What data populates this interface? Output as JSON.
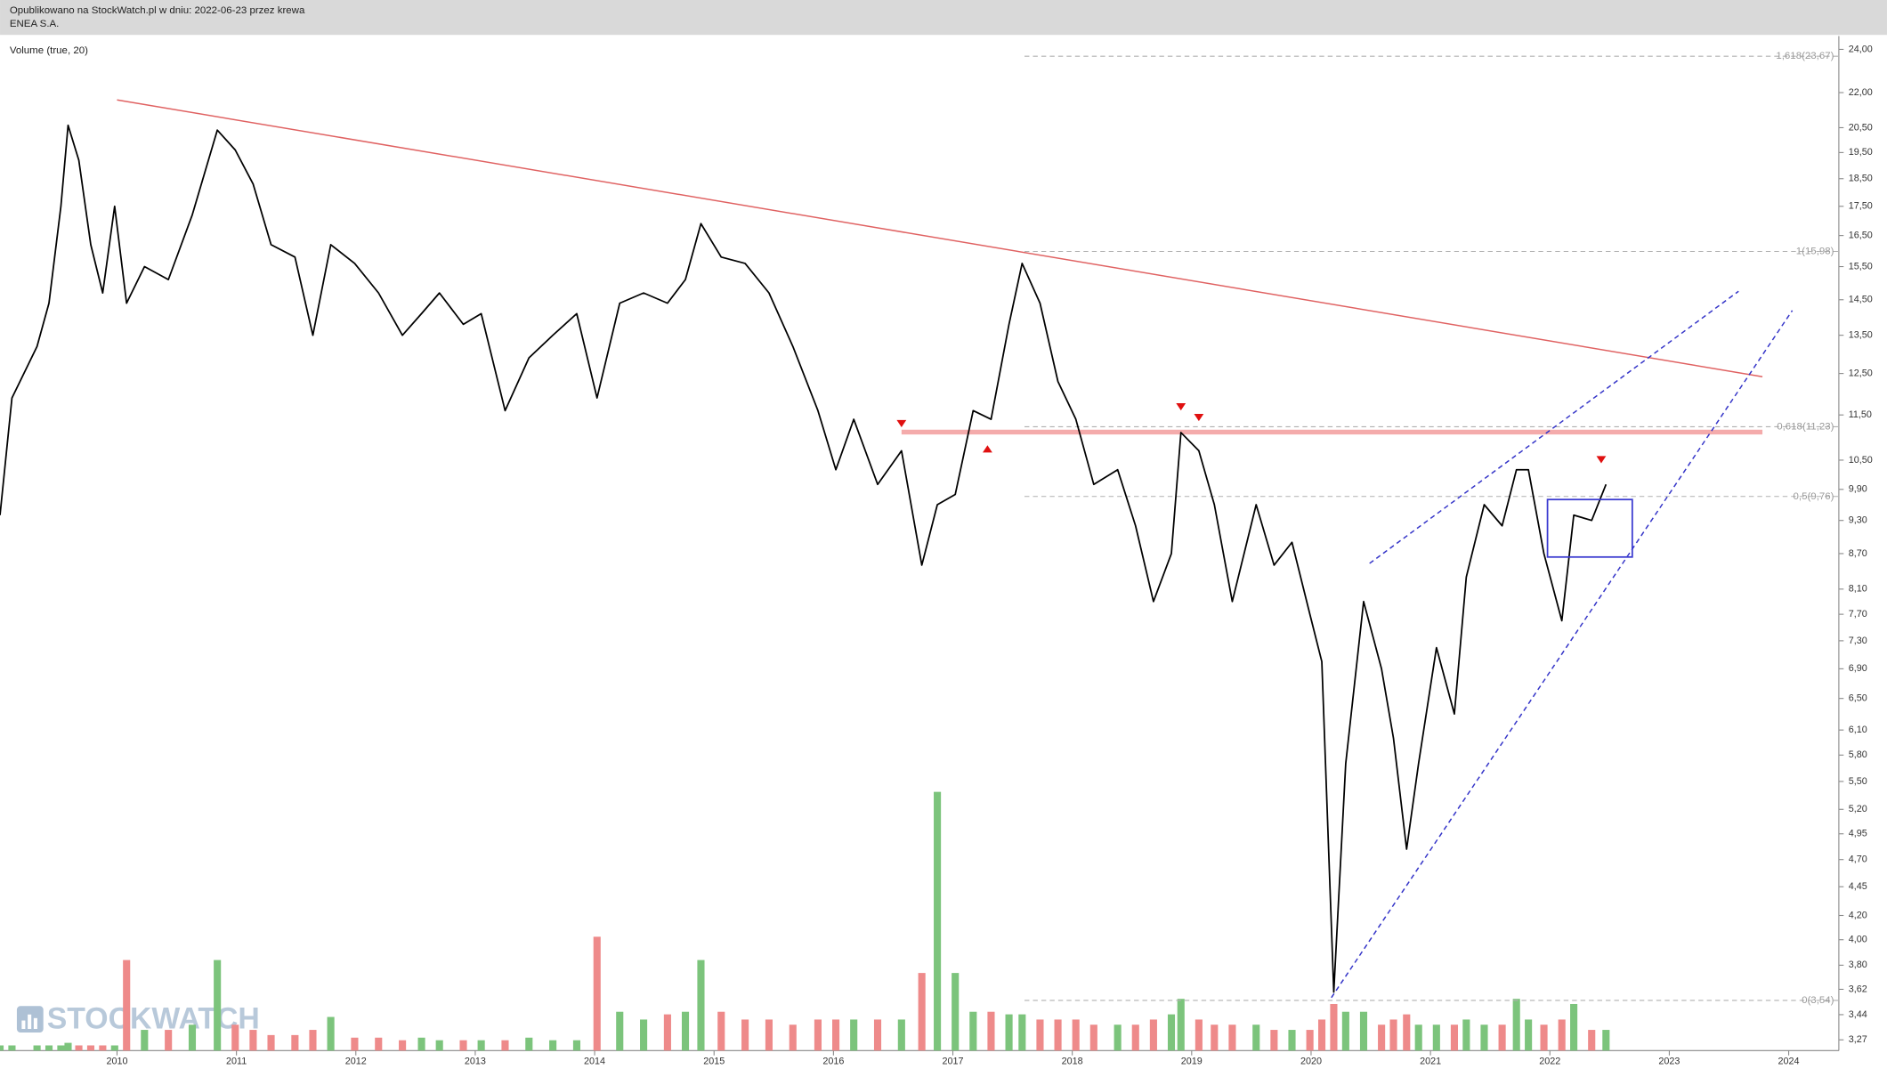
{
  "header": {
    "published": "Opublikowano na StockWatch.pl w dniu: 2022-06-23 przez krewa",
    "symbol": "ENEA S.A."
  },
  "volume_label": "Volume (true, 20)",
  "watermark": "STOCKWATCH",
  "chart_data": {
    "type": "line",
    "log_scale": true,
    "xlim": [
      2009.02,
      2024.42
    ],
    "ylim": [
      3.2,
      24.5
    ],
    "y2lim": [
      0,
      100
    ],
    "xticks": [
      2010,
      2011,
      2012,
      2013,
      2014,
      2015,
      2016,
      2017,
      2018,
      2019,
      2020,
      2021,
      2022,
      2023,
      2024
    ],
    "yticks": [
      {
        "value": 24,
        "label": "24,00"
      },
      {
        "value": 22,
        "label": "22,00"
      },
      {
        "value": 20.5,
        "label": "20,50"
      },
      {
        "value": 19.5,
        "label": "19,50"
      },
      {
        "value": 18.5,
        "label": "18,50"
      },
      {
        "value": 17.5,
        "label": "17,50"
      },
      {
        "value": 16.5,
        "label": "16,50"
      },
      {
        "value": 15.5,
        "label": "15,50"
      },
      {
        "value": 14.5,
        "label": "14,50"
      },
      {
        "value": 13.5,
        "label": "13,50"
      },
      {
        "value": 12.5,
        "label": "12,50"
      },
      {
        "value": 11.5,
        "label": "11,50"
      },
      {
        "value": 10.5,
        "label": "10,50"
      },
      {
        "value": 9.9,
        "label": "9,90"
      },
      {
        "value": 9.3,
        "label": "9,30"
      },
      {
        "value": 8.7,
        "label": "8,70"
      },
      {
        "value": 8.1,
        "label": "8,10"
      },
      {
        "value": 7.7,
        "label": "7,70"
      },
      {
        "value": 7.3,
        "label": "7,30"
      },
      {
        "value": 6.9,
        "label": "6,90"
      },
      {
        "value": 6.5,
        "label": "6,50"
      },
      {
        "value": 6.1,
        "label": "6,10"
      },
      {
        "value": 5.8,
        "label": "5,80"
      },
      {
        "value": 5.5,
        "label": "5,50"
      },
      {
        "value": 5.2,
        "label": "5,20"
      },
      {
        "value": 4.95,
        "label": "4,95"
      },
      {
        "value": 4.7,
        "label": "4,70"
      },
      {
        "value": 4.45,
        "label": "4,45"
      },
      {
        "value": 4.2,
        "label": "4,20"
      },
      {
        "value": 4,
        "label": "4,00"
      },
      {
        "value": 3.8,
        "label": "3,80"
      },
      {
        "value": 3.62,
        "label": "3,62"
      },
      {
        "value": 3.44,
        "label": "3,44"
      },
      {
        "value": 3.27,
        "label": "3,27"
      }
    ],
    "x": [
      2009.02,
      2009.12,
      2009.33,
      2009.43,
      2009.53,
      2009.59,
      2009.68,
      2009.78,
      2009.88,
      2009.98,
      2010.08,
      2010.23,
      2010.43,
      2010.63,
      2010.84,
      2010.99,
      2011.14,
      2011.29,
      2011.49,
      2011.64,
      2011.79,
      2011.99,
      2012.19,
      2012.39,
      2012.55,
      2012.7,
      2012.9,
      2013.05,
      2013.25,
      2013.45,
      2013.65,
      2013.85,
      2014.02,
      2014.21,
      2014.41,
      2014.61,
      2014.76,
      2014.89,
      2015.06,
      2015.26,
      2015.46,
      2015.66,
      2015.87,
      2016.02,
      2016.17,
      2016.37,
      2016.57,
      2016.74,
      2016.87,
      2017.02,
      2017.17,
      2017.32,
      2017.47,
      2017.58,
      2017.73,
      2017.88,
      2018.03,
      2018.18,
      2018.38,
      2018.53,
      2018.68,
      2018.83,
      2018.91,
      2019.06,
      2019.19,
      2019.34,
      2019.54,
      2019.69,
      2019.84,
      2019.99,
      2020.09,
      2020.19,
      2020.29,
      2020.44,
      2020.59,
      2020.69,
      2020.8,
      2020.9,
      2021.05,
      2021.2,
      2021.3,
      2021.45,
      2021.6,
      2021.72,
      2021.82,
      2021.95,
      2022.1,
      2022.2,
      2022.35,
      2022.47
    ],
    "series": [
      {
        "color": "#000000",
        "values": [
          9.4,
          11.9,
          13.2,
          14.4,
          17.5,
          20.6,
          19.2,
          16.2,
          14.7,
          17.5,
          14.4,
          15.5,
          15.1,
          17.2,
          20.4,
          19.6,
          18.3,
          16.2,
          15.8,
          13.5,
          16.2,
          15.6,
          14.7,
          13.5,
          14.1,
          14.7,
          13.8,
          14.1,
          11.6,
          12.9,
          13.5,
          14.1,
          11.9,
          14.4,
          14.7,
          14.4,
          15.1,
          16.9,
          15.8,
          15.6,
          14.7,
          13.2,
          11.6,
          10.3,
          11.4,
          10.0,
          10.7,
          8.5,
          9.6,
          9.8,
          11.6,
          11.4,
          13.8,
          15.6,
          14.4,
          12.3,
          11.4,
          10.0,
          10.3,
          9.2,
          7.9,
          8.7,
          11.1,
          10.7,
          9.6,
          7.9,
          9.6,
          8.5,
          8.9,
          7.7,
          7.0,
          3.6,
          5.7,
          7.9,
          6.9,
          6.0,
          4.8,
          5.7,
          7.2,
          6.3,
          8.3,
          9.6,
          9.2,
          10.3,
          10.3,
          8.7,
          7.6,
          9.4,
          9.3,
          10.0
        ]
      }
    ],
    "volume": {
      "up_color": "#7cc47c",
      "down_color": "#ee8a8a",
      "values": [
        2,
        2,
        2,
        2,
        2,
        3,
        2,
        2,
        2,
        2,
        35,
        8,
        8,
        10,
        35,
        10,
        8,
        6,
        6,
        8,
        13,
        5,
        5,
        4,
        5,
        4,
        4,
        4,
        4,
        5,
        4,
        4,
        44,
        15,
        12,
        14,
        15,
        35,
        15,
        12,
        12,
        10,
        12,
        12,
        12,
        12,
        12,
        30,
        100,
        30,
        15,
        15,
        14,
        14,
        12,
        12,
        12,
        10,
        10,
        10,
        12,
        14,
        20,
        12,
        10,
        10,
        10,
        8,
        8,
        8,
        12,
        18,
        15,
        15,
        10,
        12,
        14,
        10,
        10,
        10,
        12,
        10,
        10,
        20,
        12,
        10,
        12,
        18,
        8,
        8
      ]
    },
    "levels_start": 2017.6,
    "levels": [
      {
        "value": 23.67,
        "label": "1,618(23,67)"
      },
      {
        "value": 15.98,
        "label": "1(15,98)"
      },
      {
        "value": 11.23,
        "label": "0,618(11,23)"
      },
      {
        "value": 9.76,
        "label": "0,5(9,76)"
      },
      {
        "value": 3.54,
        "label": "0(3,54)"
      }
    ],
    "trendlines": [
      {
        "x": [
          2010.0,
          2023.78
        ],
        "y": [
          21.68,
          12.42
        ],
        "color": "#e06262",
        "style": "solid"
      },
      {
        "x": [
          2016.57,
          2023.78
        ],
        "y": [
          11.11,
          11.11
        ],
        "color": "#f4abab",
        "style": "thick"
      },
      {
        "x": [
          2020.49,
          2023.58
        ],
        "y": [
          8.53,
          14.75
        ],
        "color": "#3434c8",
        "style": "dashed"
      },
      {
        "x": [
          2020.17,
          2024.03
        ],
        "y": [
          3.56,
          14.19
        ],
        "color": "#3434c8",
        "style": "dashed"
      }
    ],
    "box": {
      "x": [
        2021.98,
        2022.69
      ],
      "y": [
        8.64,
        9.7
      ],
      "color": "#3a3ad0"
    },
    "markers": [
      {
        "x": 2016.57,
        "y": 11.3,
        "direction": "down"
      },
      {
        "x": 2017.29,
        "y": 10.74,
        "direction": "up"
      },
      {
        "x": 2018.91,
        "y": 11.69,
        "direction": "down"
      },
      {
        "x": 2019.06,
        "y": 11.44,
        "direction": "down"
      },
      {
        "x": 2022.43,
        "y": 10.51,
        "direction": "down"
      }
    ],
    "marker_color": "#e01010"
  }
}
